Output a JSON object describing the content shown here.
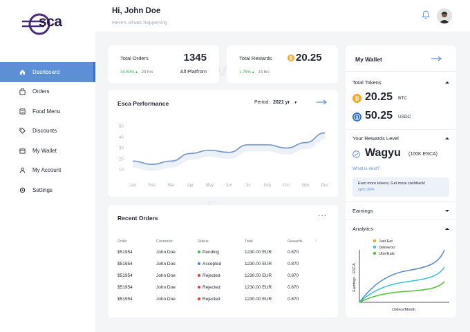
{
  "brand": {
    "logo_text": "sca"
  },
  "sidebar": {
    "items": [
      {
        "label": "Dashboard",
        "icon": "home-icon",
        "active": true
      },
      {
        "label": "Orders",
        "icon": "bag-icon"
      },
      {
        "label": "Food Menu",
        "icon": "menu-icon"
      },
      {
        "label": "Discounts",
        "icon": "tag-icon"
      },
      {
        "label": "My Wallet",
        "icon": "wallet-icon"
      },
      {
        "label": "My Account",
        "icon": "user-icon"
      },
      {
        "label": "Settings",
        "icon": "gear-icon"
      }
    ]
  },
  "header": {
    "greeting": "Hi, John Doe",
    "subtitle": "Here's whats happening"
  },
  "stats": {
    "orders": {
      "label": "Total Orders",
      "value": "1345",
      "change": "34.50%",
      "period": "24 hrs",
      "scope": "All Platfrom"
    },
    "rewards": {
      "label": "Total Rewards",
      "value": "20.25",
      "change": "1.75%",
      "period": "24 hrs"
    }
  },
  "performance": {
    "title": "Esca Performance",
    "period_label": "Period:",
    "period_value": "2021 yr"
  },
  "chart_data": {
    "type": "line",
    "categories": [
      "Jan",
      "Feb",
      "Mar",
      "Apr",
      "May",
      "Jun",
      "Jul",
      "Sep",
      "Oct",
      "Nov",
      "Dec"
    ],
    "values": [
      18,
      15,
      18,
      25,
      28,
      26,
      33,
      33,
      30,
      35,
      44
    ],
    "yticks": [
      "50",
      "40",
      "30",
      "20",
      "10"
    ],
    "ylim": [
      10,
      50
    ],
    "color": "#7a9cc8"
  },
  "recent_orders": {
    "title": "Recent Orders",
    "columns": [
      "Order",
      "Customer",
      "Status",
      "Total",
      "Rewards"
    ],
    "rows": [
      {
        "order": "$51954",
        "customer": "John Doe",
        "status": "Pending",
        "status_color": "#4caf50",
        "total": "1230.00 EUR",
        "rewards": "0.870"
      },
      {
        "order": "$51954",
        "customer": "John Doe",
        "status": "Accepted",
        "status_color": "#5b7fc7",
        "total": "1230.00 EUR",
        "rewards": "0.870"
      },
      {
        "order": "$51954",
        "customer": "John Doe",
        "status": "Rejected",
        "status_color": "#e53935",
        "total": "1230.00 EUR",
        "rewards": "0.870"
      },
      {
        "order": "$51954",
        "customer": "John Doe",
        "status": "Rejected",
        "status_color": "#e53935",
        "total": "1230.00 EUR",
        "rewards": "0.870"
      },
      {
        "order": "$51954",
        "customer": "John Doe",
        "status": "Rejected",
        "status_color": "#e53935",
        "total": "1230.00 EUR",
        "rewards": "0.870"
      }
    ]
  },
  "wallet": {
    "title": "My Wallet",
    "tokens_label": "Total Tokens",
    "btc_value": "20.25",
    "btc_unit": "BTC",
    "usdc_value": "50.25",
    "usdc_unit": "USDC",
    "rewards_level_label": "Your Rewards Level",
    "level_name": "Wagyu",
    "level_detail": "(100K ESCA)",
    "whats_next": "What is next?",
    "tip_line1": "Earn more tokens, Get more cashback!",
    "tip_line2": "upto 30%",
    "earnings_label": "Earnings",
    "analytics_label": "Analytics",
    "legend": [
      {
        "name": "Just Eat",
        "color": "#f5a623"
      },
      {
        "name": "Deliveroo",
        "color": "#3fc1d8"
      },
      {
        "name": "UberEats",
        "color": "#52c234"
      }
    ],
    "y_axis": "Earnings - ESCA",
    "x_axis": "Orders/Month"
  },
  "watermark": "fiverr"
}
